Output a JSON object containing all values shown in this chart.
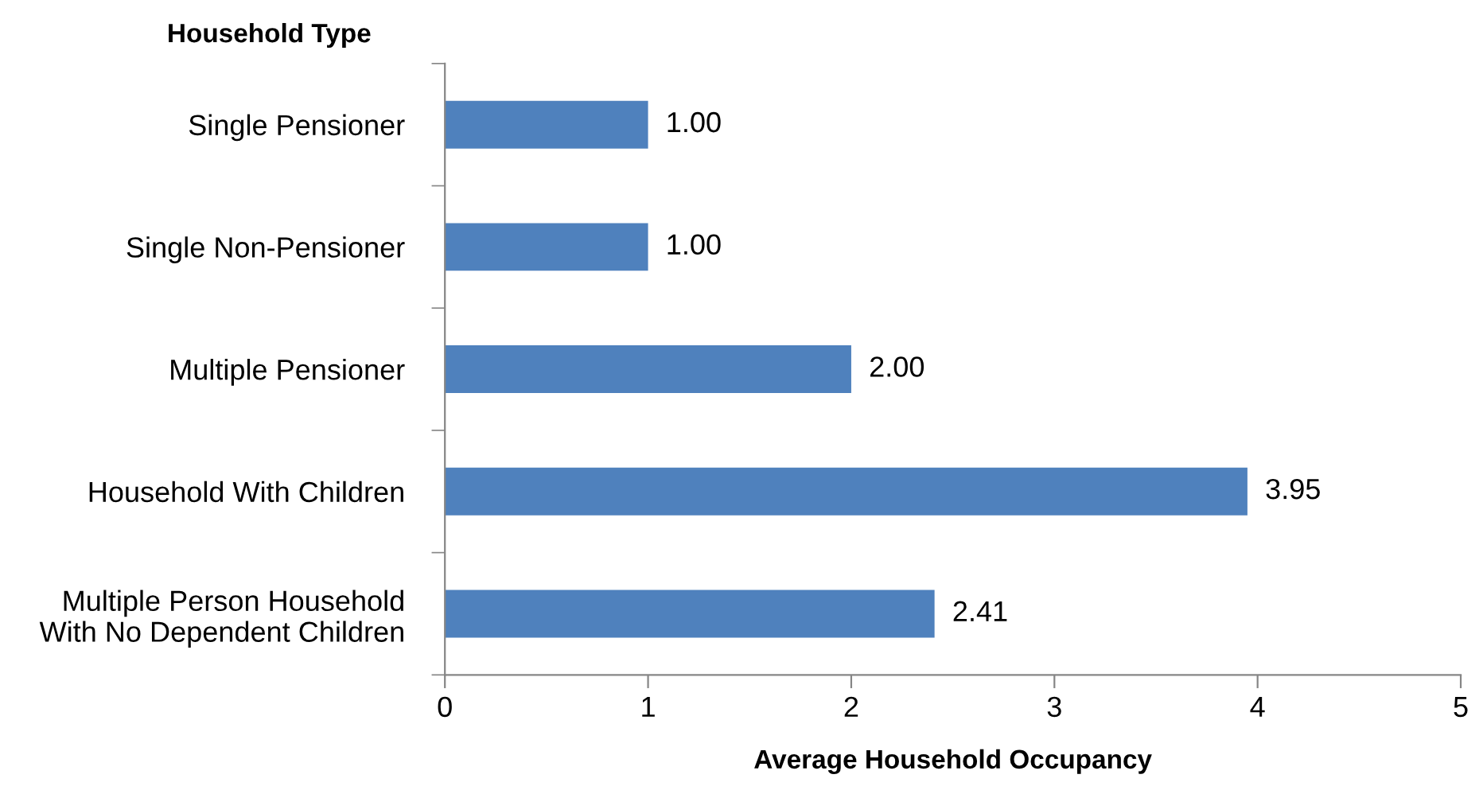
{
  "chart_data": {
    "type": "bar",
    "orientation": "horizontal",
    "ylabel": "Household Type",
    "xlabel": "Average Household Occupancy",
    "categories": [
      "Single Pensioner",
      "Single Non-Pensioner",
      "Multiple Pensioner",
      "Household With Children",
      "Multiple Person Household\nWith No Dependent Children"
    ],
    "values": [
      1.0,
      1.0,
      2.0,
      3.95,
      2.41
    ],
    "value_labels": [
      "1.00",
      "1.00",
      "2.00",
      "3.95",
      "2.41"
    ],
    "color": "#4f81bd",
    "xlim": [
      0,
      5
    ],
    "xticks": [
      0,
      1,
      2,
      3,
      4,
      5
    ],
    "grid": false,
    "legend": false
  }
}
